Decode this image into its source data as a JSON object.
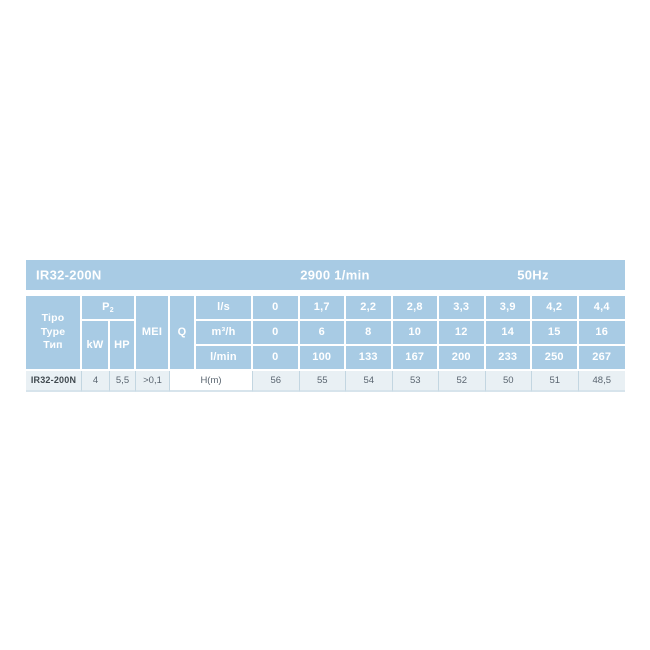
{
  "colors": {
    "accent": "#a8cbe4",
    "row-bg": "#e9f0f4",
    "row-line": "#c3d6e1",
    "row-bottom": "#d7e4ec",
    "header-text": "#ffffff",
    "row-text": "#5a6570",
    "model-text": "#40494f"
  },
  "top_band": {
    "model": "IR32-200N",
    "speed": "2900 1/min",
    "frequency": "50Hz"
  },
  "header": {
    "type_lines": [
      "Tipo",
      "Type",
      "Тип"
    ],
    "p2_base": "P",
    "p2_sub": "2",
    "kw": "kW",
    "hp": "HP",
    "mei": "MEI",
    "q": "Q"
  },
  "table": {
    "flow_rows": [
      {
        "unit": "l/s",
        "values": [
          "0",
          "1,7",
          "2,2",
          "2,8",
          "3,3",
          "3,9",
          "4,2",
          "4,4"
        ]
      },
      {
        "unit": "m³/h",
        "values": [
          "0",
          "6",
          "8",
          "10",
          "12",
          "14",
          "15",
          "16"
        ]
      },
      {
        "unit": "l/min",
        "values": [
          "0",
          "100",
          "133",
          "167",
          "200",
          "233",
          "250",
          "267"
        ]
      }
    ],
    "pump_row": {
      "model": "IR32-200N",
      "kw": "4",
      "hp": "5,5",
      "mei": ">0,1",
      "head_label": "H(m)",
      "head_values": [
        "56",
        "55",
        "54",
        "53",
        "52",
        "50",
        "51",
        "48,5"
      ]
    }
  }
}
